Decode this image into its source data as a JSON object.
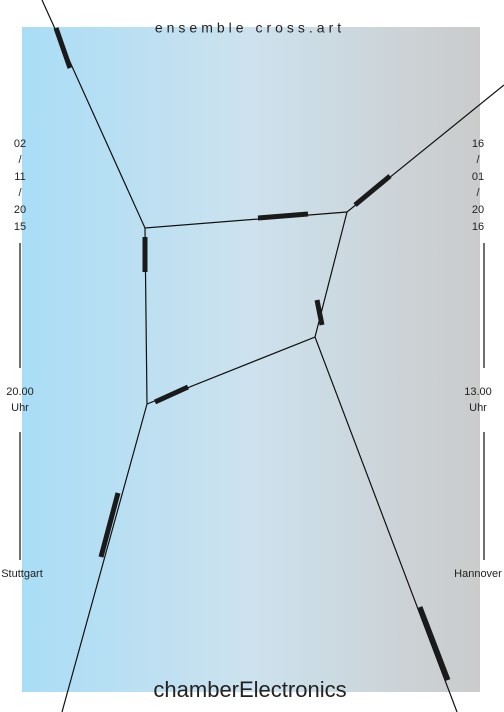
{
  "header": {
    "title": "ensemble cross.art"
  },
  "left": {
    "date": [
      "02",
      "/",
      "11",
      "/",
      "20",
      "15"
    ],
    "time": [
      "20.00",
      "Uhr"
    ],
    "city": "Stuttgart"
  },
  "right": {
    "date": [
      "16",
      "/",
      "01",
      "/",
      "20",
      "16"
    ],
    "time": [
      "13.00",
      "Uhr"
    ],
    "city": "Hannover"
  },
  "footer": {
    "title": "chamberElectronics"
  }
}
